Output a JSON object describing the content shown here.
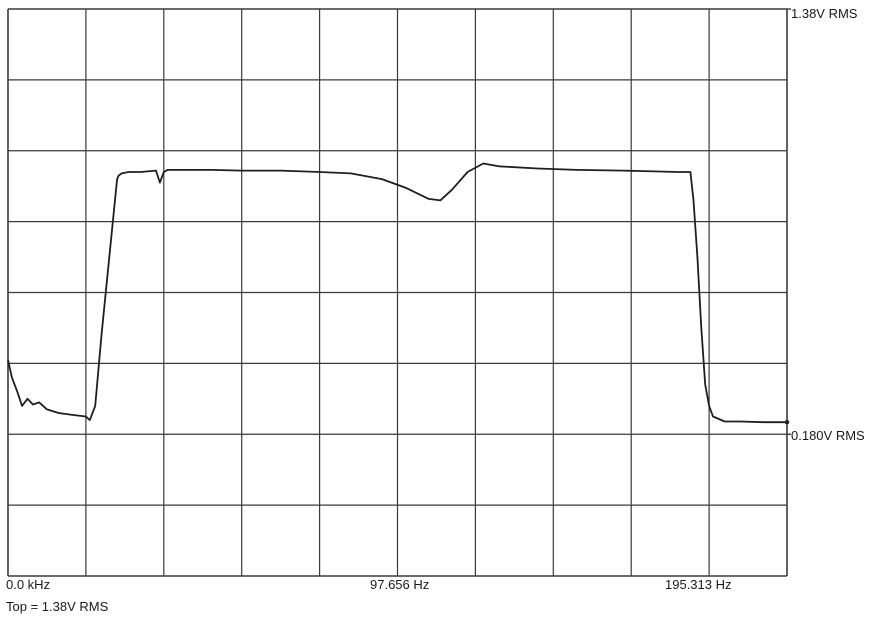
{
  "labels": {
    "top_right": "1.38V RMS",
    "ref_right": "0.180V RMS",
    "x_left": "0.0 kHz",
    "x_mid": "97.656 Hz",
    "x_right": "195.313 Hz",
    "footer": "Top = 1.38V RMS"
  },
  "colors": {
    "grid": "#3a3a3a",
    "trace": "#1f1f1f",
    "background": "#ffffff"
  },
  "chart_data": {
    "type": "line",
    "grid": true,
    "grid_divisions": {
      "x": 10,
      "y": 8
    },
    "xlim": [
      0,
      10
    ],
    "ylim": [
      0,
      8
    ],
    "ticks_x": [
      {
        "x": 0,
        "label": "0.0 kHz"
      },
      {
        "x": 4.6,
        "label": "97.656 Hz"
      },
      {
        "x": 9.1,
        "label": "195.313 Hz"
      }
    ],
    "ref_levels": [
      {
        "y": 8.0,
        "label": "1.38V RMS"
      },
      {
        "y": 2.0,
        "label": "0.180V RMS"
      }
    ],
    "footer": "Top = 1.38V RMS",
    "series": [
      {
        "x": [
          0.0,
          0.05,
          0.12,
          0.18,
          0.25,
          0.32,
          0.4,
          0.5,
          0.65,
          0.85,
          1.0,
          1.05,
          1.12,
          1.2,
          1.3,
          1.4,
          1.42,
          1.46,
          1.55,
          1.7,
          1.9,
          1.95,
          2.0,
          2.05,
          2.2,
          2.6,
          3.0,
          3.5,
          4.0,
          4.4,
          4.8,
          5.1,
          5.4,
          5.55,
          5.7,
          5.9,
          6.1,
          6.3,
          6.8,
          7.3,
          7.9,
          8.6,
          8.76,
          8.8,
          8.85,
          8.9,
          8.95,
          9.0,
          9.05,
          9.2,
          9.4,
          9.7,
          10.0
        ],
        "y": [
          3.05,
          2.8,
          2.6,
          2.4,
          2.5,
          2.42,
          2.45,
          2.35,
          2.3,
          2.27,
          2.25,
          2.2,
          2.4,
          3.4,
          4.5,
          5.6,
          5.65,
          5.68,
          5.7,
          5.7,
          5.72,
          5.55,
          5.7,
          5.73,
          5.73,
          5.73,
          5.72,
          5.72,
          5.7,
          5.68,
          5.6,
          5.48,
          5.32,
          5.3,
          5.45,
          5.7,
          5.82,
          5.78,
          5.75,
          5.73,
          5.72,
          5.7,
          5.7,
          5.3,
          4.5,
          3.5,
          2.7,
          2.4,
          2.25,
          2.18,
          2.18,
          2.17,
          2.17
        ]
      }
    ]
  }
}
